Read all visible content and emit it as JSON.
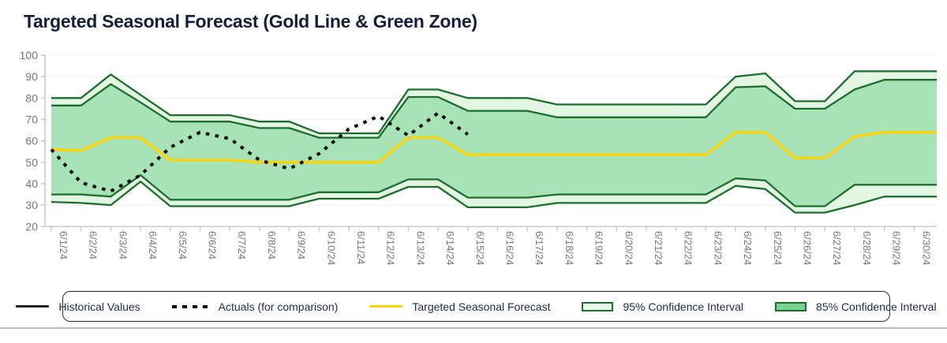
{
  "title": "Targeted Seasonal Forecast (Gold Line & Green Zone)",
  "colors": {
    "title_text": "#141f38",
    "axis_text": "#787878",
    "grid_line": "#efefef",
    "axis_line": "#c9c9c9",
    "band_edge": "#1d6e2e",
    "band95_fill": "#e3f6e2",
    "band85_fill": "#a7e3b6",
    "forecast_gold": "#ffd30a",
    "actuals_black": "#0a0a0a",
    "historical_black": "#222222",
    "legend_border": "#252d3d",
    "legend_text": "#1c2b4a",
    "swatch95_fill": "#eafaea",
    "swatch85_fill": "#79d290",
    "divider": "#b9bcc2"
  },
  "y_axis": {
    "min": 20,
    "max": 100,
    "tick_step": 10,
    "tick_labels": [
      "20",
      "30",
      "40",
      "50",
      "60",
      "70",
      "80",
      "90",
      "100"
    ]
  },
  "x_axis": {
    "tick_labels": [
      "6/1/24",
      "6/2/24",
      "6/3/24",
      "6/4/24",
      "6/5/24",
      "6/6/24",
      "6/7/24",
      "6/8/24",
      "6/9/24",
      "6/10/24",
      "6/11/24",
      "6/12/24",
      "6/13/24",
      "6/14/24",
      "6/15/24",
      "6/16/24",
      "6/17/24",
      "6/18/24",
      "6/19/24",
      "6/20/24",
      "6/21/24",
      "6/22/24",
      "6/23/24",
      "6/24/24",
      "6/25/24",
      "6/26/24",
      "6/27/24",
      "6/28/24",
      "6/29/24",
      "6/30/24"
    ]
  },
  "legend_order": [
    "historical",
    "actuals",
    "forecast",
    "ci95",
    "ci85"
  ],
  "chart_data": {
    "type": "area",
    "title": "Targeted Seasonal Forecast (Gold Line & Green Zone)",
    "xlabel": "",
    "ylabel": "",
    "ylim": [
      20,
      100
    ],
    "grid": true,
    "legend_position": "bottom",
    "x": [
      "6/1/24",
      "6/2/24",
      "6/3/24",
      "6/4/24",
      "6/5/24",
      "6/6/24",
      "6/7/24",
      "6/8/24",
      "6/9/24",
      "6/10/24",
      "6/11/24",
      "6/12/24",
      "6/13/24",
      "6/14/24",
      "6/15/24",
      "6/16/24",
      "6/17/24",
      "6/18/24",
      "6/19/24",
      "6/20/24",
      "6/21/24",
      "6/22/24",
      "6/23/24",
      "6/24/24",
      "6/25/24",
      "6/26/24",
      "6/27/24",
      "6/28/24",
      "6/29/24",
      "6/30/24"
    ],
    "series": [
      {
        "id": "ci95",
        "name": "95% Confidence Interval",
        "type": "band",
        "fill": "#e3f6e2",
        "edge": "#1d6e2e",
        "edge_width": 2.3,
        "upper": [
          80,
          80,
          91,
          81.5,
          72,
          72,
          72,
          69,
          69,
          63.5,
          63.5,
          63.5,
          84,
          84,
          80,
          80,
          80,
          77,
          77,
          77,
          77,
          77,
          77,
          90,
          91.5,
          78.5,
          78.5,
          92.5,
          92.5,
          92.5
        ],
        "lower": [
          31.5,
          31,
          30,
          41,
          29.5,
          29.5,
          29.5,
          29.5,
          29.5,
          33,
          33,
          33,
          38.5,
          38.5,
          29,
          29,
          29,
          31,
          31,
          31,
          31,
          31,
          31,
          39,
          37.5,
          26.5,
          26.5,
          30,
          34,
          34
        ]
      },
      {
        "id": "ci85",
        "name": "85% Confidence Interval",
        "type": "band",
        "fill": "#a7e3b6",
        "edge": "#1d6e2e",
        "edge_width": 2.3,
        "upper": [
          76.5,
          76.5,
          86.5,
          78,
          69,
          69,
          69,
          66,
          66,
          61.5,
          61.5,
          61.5,
          80.5,
          80.5,
          74,
          74,
          74,
          71,
          71,
          71,
          71,
          71,
          71,
          85,
          85.5,
          75,
          75,
          84,
          88.5,
          88.5
        ],
        "lower": [
          35,
          35,
          34,
          44,
          32.5,
          32.5,
          32.5,
          32.5,
          32.5,
          36,
          36,
          36,
          42,
          42,
          33.5,
          33.5,
          33.5,
          35,
          35,
          35,
          35,
          35,
          35,
          42.5,
          41.5,
          29.5,
          29.5,
          39.5,
          39.5,
          39.5
        ]
      },
      {
        "id": "forecast",
        "name": "Targeted Seasonal Forecast",
        "type": "line",
        "color": "#ffd30a",
        "width": 3.4,
        "dashed": false,
        "values": [
          56,
          55.5,
          61.5,
          61.5,
          51,
          51,
          51,
          50,
          50,
          50,
          50,
          50,
          61.5,
          61.5,
          53.5,
          53.5,
          53.5,
          53.5,
          53.5,
          53.5,
          53.5,
          53.5,
          53.5,
          64,
          64,
          52,
          52,
          62,
          64,
          64
        ]
      },
      {
        "id": "actuals",
        "name": "Actuals (for comparison)",
        "type": "line",
        "color": "#0a0a0a",
        "width": 4,
        "dashed": true,
        "values": [
          56,
          40.5,
          36.5,
          44,
          57,
          64,
          61,
          51,
          47,
          54,
          65.5,
          71.5,
          62.5,
          73,
          63,
          null,
          null,
          null,
          null,
          null,
          null,
          null,
          null,
          null,
          null,
          null,
          null,
          null,
          null,
          null
        ]
      },
      {
        "id": "historical",
        "name": "Historical Values",
        "type": "line",
        "color": "#222222",
        "width": 2.5,
        "dashed": false,
        "values": []
      }
    ]
  }
}
